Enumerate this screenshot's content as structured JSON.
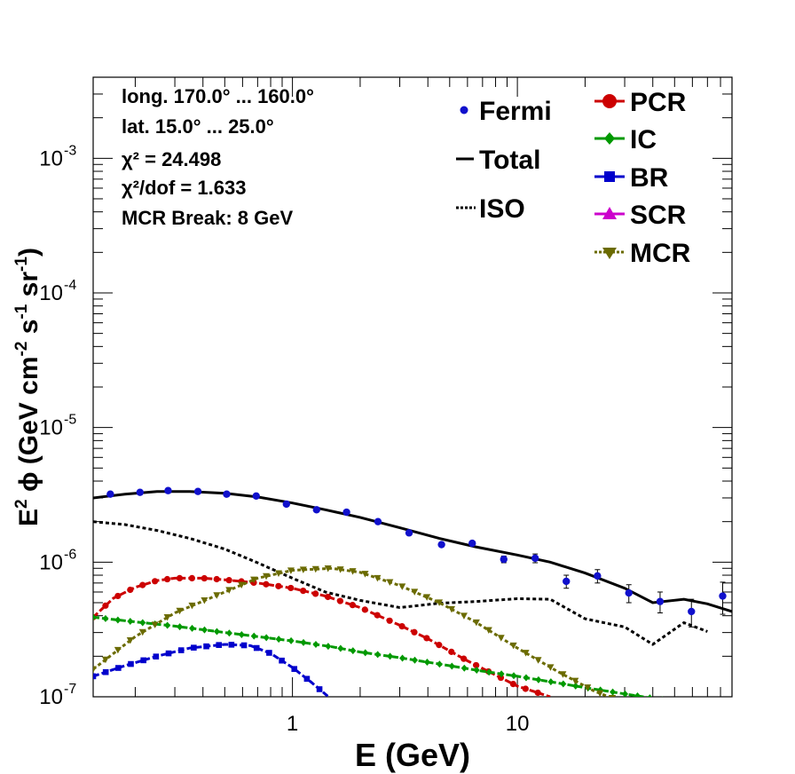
{
  "chart_data": {
    "type": "line",
    "xlabel": "E (GeV)",
    "ylabel": "E² ϕ (GeV cm⁻² s⁻¹ sr⁻¹)",
    "xscale": "log",
    "yscale": "log",
    "xlim": [
      0.13,
      90
    ],
    "ylim": [
      1e-07,
      0.004
    ],
    "grid": false,
    "xticks": [
      {
        "value": 1,
        "label": "1"
      },
      {
        "value": 10,
        "label": "10"
      }
    ],
    "yticks": [
      {
        "value": 1e-07,
        "label": "10",
        "exp": "-7"
      },
      {
        "value": 1e-06,
        "label": "10",
        "exp": "-6"
      },
      {
        "value": 1e-05,
        "label": "10",
        "exp": "-5"
      },
      {
        "value": 0.0001,
        "label": "10",
        "exp": "-4"
      },
      {
        "value": 0.001,
        "label": "10",
        "exp": "-3"
      }
    ],
    "info": [
      "long. 170.0° ... 160.0°",
      "lat. 15.0° ... 25.0°",
      "χ² = 24.498",
      "χ²/dof = 1.633",
      "MCR Break:  8 GeV"
    ],
    "legend_left": [
      "Fermi",
      "Total",
      "ISO"
    ],
    "legend_right": [
      "PCR",
      "IC",
      "BR",
      "SCR",
      "MCR"
    ],
    "legend_placement": "top-right",
    "fermi": {
      "name": "Fermi",
      "color": "#1010cc",
      "points": [
        {
          "x": 0.155,
          "y": 3.2e-06,
          "err": 1e-07
        },
        {
          "x": 0.21,
          "y": 3.3e-06,
          "err": 1e-07
        },
        {
          "x": 0.28,
          "y": 3.4e-06,
          "err": 1e-07
        },
        {
          "x": 0.38,
          "y": 3.35e-06,
          "err": 1e-07
        },
        {
          "x": 0.51,
          "y": 3.2e-06,
          "err": 1e-07
        },
        {
          "x": 0.69,
          "y": 3.1e-06,
          "err": 1e-07
        },
        {
          "x": 0.94,
          "y": 2.7e-06,
          "err": 1e-07
        },
        {
          "x": 1.28,
          "y": 2.45e-06,
          "err": 8e-08
        },
        {
          "x": 1.74,
          "y": 2.35e-06,
          "err": 8e-08
        },
        {
          "x": 2.4,
          "y": 2e-06,
          "err": 7e-08
        },
        {
          "x": 3.3,
          "y": 1.65e-06,
          "err": 7e-08
        },
        {
          "x": 4.6,
          "y": 1.35e-06,
          "err": 6e-08
        },
        {
          "x": 6.3,
          "y": 1.38e-06,
          "err": 6e-08
        },
        {
          "x": 8.7,
          "y": 1.05e-06,
          "err": 6e-08
        },
        {
          "x": 12.0,
          "y": 1.07e-06,
          "err": 8e-08
        },
        {
          "x": 16.5,
          "y": 7.2e-07,
          "err": 8e-08
        },
        {
          "x": 22.7,
          "y": 7.9e-07,
          "err": 9e-08
        },
        {
          "x": 31.3,
          "y": 5.9e-07,
          "err": 9e-08
        },
        {
          "x": 43.1,
          "y": 5.1e-07,
          "err": 9e-08
        },
        {
          "x": 59.4,
          "y": 4.3e-07,
          "err": 1e-07
        },
        {
          "x": 81.8,
          "y": 5.6e-07,
          "err": 1.5e-07
        }
      ]
    },
    "series": [
      {
        "name": "Total",
        "color": "#000000",
        "style": "solid",
        "marker": "none",
        "x": [
          0.13,
          0.18,
          0.25,
          0.35,
          0.5,
          0.7,
          1.0,
          1.4,
          2.0,
          3.0,
          4.5,
          6.5,
          10,
          14,
          20,
          30,
          40,
          55,
          70,
          90
        ],
        "y": [
          3e-06,
          3.2e-06,
          3.35e-06,
          3.35e-06,
          3.25e-06,
          3.05e-06,
          2.75e-06,
          2.45e-06,
          2.15e-06,
          1.8e-06,
          1.5e-06,
          1.3e-06,
          1.13e-06,
          1e-06,
          8.3e-07,
          6.4e-07,
          5e-07,
          5.3e-07,
          4.9e-07,
          4.3e-07
        ]
      },
      {
        "name": "ISO",
        "color": "#000000",
        "style": "dotted",
        "marker": "none",
        "x": [
          0.13,
          0.18,
          0.25,
          0.35,
          0.5,
          0.7,
          1.0,
          1.4,
          2.0,
          3.0,
          4.5,
          6.5,
          10,
          14,
          20,
          30,
          40,
          55,
          70
        ],
        "y": [
          2e-06,
          1.9e-06,
          1.72e-06,
          1.5e-06,
          1.25e-06,
          9.9e-07,
          7.6e-07,
          6e-07,
          5.2e-07,
          4.6e-07,
          4.95e-07,
          5.1e-07,
          5.35e-07,
          5.3e-07,
          3.8e-07,
          3.3e-07,
          2.45e-07,
          3.55e-07,
          3.05e-07
        ]
      },
      {
        "name": "PCR",
        "color": "#cc0000",
        "style": "dashed",
        "marker": "circle",
        "x": [
          0.13,
          0.16,
          0.2,
          0.25,
          0.3,
          0.4,
          0.5,
          0.7,
          1.0,
          1.4,
          2.0,
          3.0,
          4.0,
          6.0,
          8.0,
          10,
          14
        ],
        "y": [
          3.9e-07,
          5.4e-07,
          6.5e-07,
          7.3e-07,
          7.6e-07,
          7.6e-07,
          7.4e-07,
          7e-07,
          6.4e-07,
          5.6e-07,
          4.6e-07,
          3.4e-07,
          2.7e-07,
          1.85e-07,
          1.45e-07,
          1.2e-07,
          1e-07
        ]
      },
      {
        "name": "IC",
        "color": "#009900",
        "style": "dashed",
        "marker": "diamond",
        "x": [
          0.13,
          0.2,
          0.3,
          0.5,
          0.7,
          1.0,
          1.5,
          2.0,
          3.0,
          5.0,
          7.0,
          10,
          15,
          20,
          30,
          50
        ],
        "y": [
          3.9e-07,
          3.6e-07,
          3.35e-07,
          3e-07,
          2.8e-07,
          2.6e-07,
          2.35e-07,
          2.15e-07,
          1.95e-07,
          1.7e-07,
          1.55e-07,
          1.42e-07,
          1.27e-07,
          1.17e-07,
          1.05e-07,
          9.2e-08
        ]
      },
      {
        "name": "BR",
        "color": "#0000cc",
        "style": "dashed",
        "marker": "square",
        "x": [
          0.13,
          0.18,
          0.25,
          0.35,
          0.5,
          0.65,
          0.8,
          1.0,
          1.2,
          1.5
        ],
        "y": [
          1.42e-07,
          1.7e-07,
          2e-07,
          2.3e-07,
          2.45e-07,
          2.4e-07,
          2.1e-07,
          1.65e-07,
          1.3e-07,
          9.5e-08
        ]
      },
      {
        "name": "MCR",
        "color": "#6b6b00",
        "style": "dotted",
        "marker": "triangle-down",
        "x": [
          0.13,
          0.2,
          0.3,
          0.5,
          0.7,
          1.0,
          1.5,
          2.0,
          3.0,
          4.5,
          6.5,
          10,
          15,
          22,
          30
        ],
        "y": [
          1.6e-07,
          2.8e-07,
          4.2e-07,
          6e-07,
          7.6e-07,
          8.7e-07,
          9e-07,
          8.4e-07,
          6.7e-07,
          5e-07,
          3.6e-07,
          2.3e-07,
          1.55e-07,
          1.1e-07,
          9e-08
        ]
      }
    ]
  }
}
